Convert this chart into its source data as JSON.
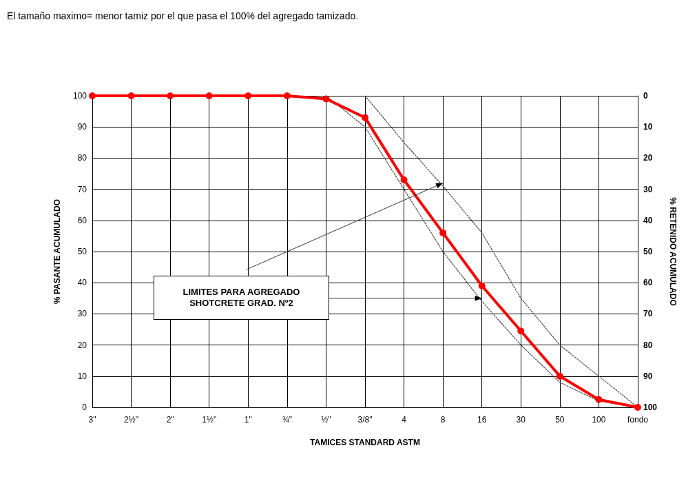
{
  "chart_data": {
    "type": "line",
    "categories": [
      "3\"",
      "2½\"",
      "2\"",
      "1½\"",
      "1\"",
      "¾\"",
      "½\"",
      "3/8\"",
      "4",
      "8",
      "16",
      "30",
      "50",
      "100",
      "fondo"
    ],
    "series": [
      {
        "color": "#ff0000",
        "marker": "circle",
        "line_style": "solid",
        "values": [
          100,
          100,
          100,
          100,
          100,
          100,
          99,
          93,
          73,
          56,
          39,
          24.5,
          10,
          2.5,
          0
        ]
      },
      {
        "color": "#404040",
        "marker": "none",
        "line_style": "dotted",
        "values": [
          null,
          null,
          null,
          null,
          null,
          null,
          null,
          100,
          85,
          71,
          56,
          35,
          20,
          10,
          0
        ]
      },
      {
        "color": "#404040",
        "marker": "none",
        "line_style": "dotted",
        "values": [
          null,
          null,
          null,
          null,
          null,
          null,
          100,
          90,
          70,
          50,
          34,
          20,
          8,
          2,
          0
        ]
      }
    ],
    "xlabel": "TAMICES STANDARD ASTM",
    "ylabel": "% PASANTE ACUMULADO",
    "y2label": "% RETENIDO ACUMULADO",
    "ylim": [
      0,
      100
    ],
    "yticks": [
      0,
      10,
      20,
      30,
      40,
      50,
      60,
      70,
      80,
      90,
      100
    ],
    "y2lim": [
      100,
      0
    ],
    "y2ticks": [
      0,
      10,
      20,
      30,
      40,
      50,
      60,
      70,
      80,
      90,
      100
    ],
    "grid": true,
    "annotations": [
      "El tamaño maximo= menor tamiz por el que pasa el 100% del agregado tamizado.",
      "LIMITES PARA AGREGADO\nSHOTCRETE GRAD. Nº2"
    ]
  }
}
